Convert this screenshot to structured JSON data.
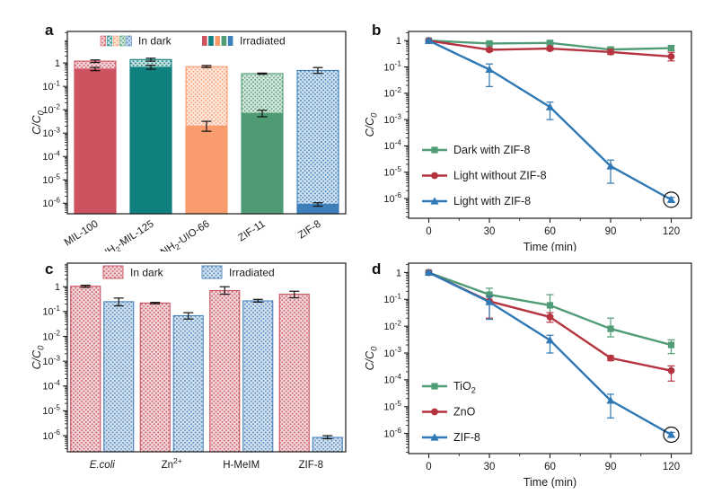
{
  "figure": {
    "background": "#ffffff",
    "text_color": "#1a1a1a"
  },
  "chart_data": [
    {
      "panel_label": "a",
      "type": "bar",
      "bar_mode": "overlay",
      "yscale": "log",
      "ylabel": [
        {
          "t": "C/C",
          "i": true
        },
        {
          "t": "0",
          "sub": true,
          "i": true
        }
      ],
      "ylim_log": [
        -6.45,
        1.35
      ],
      "yticks_exp": [
        0,
        -1,
        -2,
        -3,
        -4,
        -5,
        -6
      ],
      "legend": {
        "in_dark_label": "In dark",
        "irradiated_label": "Irradiated"
      },
      "categories": [
        {
          "label": [
            {
              "t": "MIL-100"
            }
          ],
          "color": "#ce5361"
        },
        {
          "label": [
            {
              "t": "NH"
            },
            {
              "t": "2",
              "sub": true
            },
            {
              "t": "-MIL-125"
            }
          ],
          "color": "#0f817e"
        },
        {
          "label": [
            {
              "t": "NH"
            },
            {
              "t": "2",
              "sub": true
            },
            {
              "t": "-UIO-66"
            }
          ],
          "color": "#f89c6e"
        },
        {
          "label": [
            {
              "t": "ZIF-11"
            }
          ],
          "color": "#4e9b74"
        },
        {
          "label": [
            {
              "t": "ZIF-8"
            }
          ],
          "color": "#3d7fba"
        }
      ],
      "bars": [
        {
          "name": "MIL-100",
          "in_dark": {
            "v": 1.2,
            "lo": 1.05,
            "hi": 1.35
          },
          "irradiated": {
            "v": 0.55,
            "lo": 0.47,
            "hi": 0.65
          }
        },
        {
          "name": "NH2-MIL-125",
          "in_dark": {
            "v": 1.4,
            "lo": 1.2,
            "hi": 1.6
          },
          "irradiated": {
            "v": 0.65,
            "lo": 0.54,
            "hi": 0.8
          }
        },
        {
          "name": "NH2-UIO-66",
          "in_dark": {
            "v": 0.7,
            "lo": 0.64,
            "hi": 0.78
          },
          "irradiated": {
            "v": 0.002,
            "lo": 0.0012,
            "hi": 0.0032
          }
        },
        {
          "name": "ZIF-11",
          "in_dark": {
            "v": 0.35,
            "lo": 0.33,
            "hi": 0.37
          },
          "irradiated": {
            "v": 0.007,
            "lo": 0.005,
            "hi": 0.0095
          }
        },
        {
          "name": "ZIF-8",
          "in_dark": {
            "v": 0.48,
            "lo": 0.36,
            "hi": 0.64
          },
          "irradiated": {
            "v": 9e-07,
            "lo": 7.5e-07,
            "hi": 1.05e-06
          }
        }
      ]
    },
    {
      "panel_label": "b",
      "type": "line",
      "yscale": "log",
      "ylabel": [
        {
          "t": "C/C",
          "i": true
        },
        {
          "t": "0",
          "sub": true,
          "i": true
        }
      ],
      "xlabel": "Time (min)",
      "ylim_log": [
        -6.75,
        0.35
      ],
      "xlim": [
        -10,
        130
      ],
      "xticks": [
        0,
        30,
        60,
        90,
        120
      ],
      "x_minor_step": 15,
      "yticks_exp": [
        0,
        -1,
        -2,
        -3,
        -4,
        -5,
        -6
      ],
      "legend_pos": "lower-left",
      "series": [
        {
          "name": "Dark with ZIF-8",
          "label": [
            {
              "t": "Dark with ZIF-8"
            }
          ],
          "marker": "square",
          "color": "#4f9c76",
          "x": [
            0,
            30,
            60,
            90,
            120
          ],
          "y": [
            1,
            0.78,
            0.82,
            0.46,
            0.52
          ],
          "err_lo": [
            0.93,
            0.62,
            0.68,
            0.38,
            0.42
          ],
          "err_hi": [
            1.08,
            0.92,
            0.98,
            0.56,
            0.64
          ]
        },
        {
          "name": "Light without ZIF-8",
          "label": [
            {
              "t": "Light without ZIF-8"
            }
          ],
          "marker": "circle",
          "color": "#b5333f",
          "x": [
            0,
            30,
            60,
            90,
            120
          ],
          "y": [
            1,
            0.45,
            0.5,
            0.37,
            0.25
          ],
          "err_lo": [
            0.93,
            0.39,
            0.43,
            0.3,
            0.17
          ],
          "err_hi": [
            1.08,
            0.52,
            0.58,
            0.46,
            0.36
          ]
        },
        {
          "name": "Light with ZIF-8",
          "label": [
            {
              "t": "Light with ZIF-8"
            }
          ],
          "marker": "triangle",
          "color": "#2e78b5",
          "x": [
            0,
            30,
            60,
            90,
            120
          ],
          "y": [
            1,
            0.08,
            0.003,
            1.7e-05,
            9e-07
          ],
          "err_lo": [
            0.93,
            0.018,
            0.001,
            3.8e-06,
            7.5e-07
          ],
          "err_hi": [
            1.08,
            0.13,
            0.0046,
            2.9e-05,
            1.1e-06
          ]
        }
      ],
      "annotation_circle": {
        "x": 120,
        "y": 9e-07,
        "r": 8.5
      }
    },
    {
      "panel_label": "c",
      "type": "bar",
      "bar_mode": "pair",
      "yscale": "log",
      "ylabel": [
        {
          "t": "C/C",
          "i": true
        },
        {
          "t": "0",
          "sub": true,
          "i": true
        }
      ],
      "ylim_log": [
        -6.65,
        0.95
      ],
      "yticks_exp": [
        0,
        -1,
        -2,
        -3,
        -4,
        -5,
        -6
      ],
      "pair_colors": {
        "in_dark": "#c95260",
        "irradiated": "#4a82bb"
      },
      "legend": {
        "in_dark_label": "In dark",
        "irradiated_label": "Irradiated"
      },
      "categories": [
        {
          "label": [
            {
              "t": "E.coli",
              "i": true
            }
          ]
        },
        {
          "label": [
            {
              "t": "Zn"
            },
            {
              "t": "2+",
              "sup": true
            }
          ]
        },
        {
          "label": [
            {
              "t": "H-MeIM"
            }
          ]
        },
        {
          "label": [
            {
              "t": "ZIF-8"
            }
          ]
        }
      ],
      "bars": [
        {
          "name": "E.coli",
          "in_dark": {
            "v": 1.05,
            "lo": 0.95,
            "hi": 1.15
          },
          "irradiated": {
            "v": 0.25,
            "lo": 0.17,
            "hi": 0.35
          }
        },
        {
          "name": "Zn2+",
          "in_dark": {
            "v": 0.22,
            "lo": 0.205,
            "hi": 0.235
          },
          "irradiated": {
            "v": 0.068,
            "lo": 0.05,
            "hi": 0.09
          }
        },
        {
          "name": "H-MeIM",
          "in_dark": {
            "v": 0.7,
            "lo": 0.5,
            "hi": 1.0
          },
          "irradiated": {
            "v": 0.27,
            "lo": 0.24,
            "hi": 0.31
          }
        },
        {
          "name": "ZIF-8",
          "in_dark": {
            "v": 0.5,
            "lo": 0.36,
            "hi": 0.66
          },
          "irradiated": {
            "v": 8.5e-07,
            "lo": 7.5e-07,
            "hi": 1e-06
          }
        }
      ]
    },
    {
      "panel_label": "d",
      "type": "line",
      "yscale": "log",
      "ylabel": [
        {
          "t": "C/C",
          "i": true
        },
        {
          "t": "0",
          "sub": true,
          "i": true
        }
      ],
      "xlabel": "Time (min)",
      "ylim_log": [
        -6.75,
        0.35
      ],
      "xlim": [
        -10,
        130
      ],
      "xticks": [
        0,
        30,
        60,
        90,
        120
      ],
      "x_minor_step": 15,
      "yticks_exp": [
        0,
        -1,
        -2,
        -3,
        -4,
        -5,
        -6
      ],
      "legend_pos": "lower-left",
      "series": [
        {
          "name": "TiO2",
          "label": [
            {
              "t": "TiO"
            },
            {
              "t": "2",
              "sub": true
            }
          ],
          "marker": "square",
          "color": "#4f9c76",
          "x": [
            0,
            30,
            60,
            90,
            120
          ],
          "y": [
            1,
            0.15,
            0.06,
            0.008,
            0.002
          ],
          "err_lo": [
            0.93,
            0.085,
            0.024,
            0.004,
            0.00095
          ],
          "err_hi": [
            1.08,
            0.26,
            0.15,
            0.02,
            0.0031
          ]
        },
        {
          "name": "ZnO",
          "label": [
            {
              "t": "ZnO"
            }
          ],
          "marker": "circle",
          "color": "#b5333f",
          "x": [
            0,
            30,
            60,
            90,
            120
          ],
          "y": [
            1,
            0.085,
            0.022,
            0.00065,
            0.00022
          ],
          "err_lo": [
            0.93,
            0.02,
            0.014,
            0.00052,
            9e-05
          ],
          "err_hi": [
            1.08,
            0.13,
            0.032,
            0.0008,
            0.00033
          ]
        },
        {
          "name": "ZIF-8",
          "label": [
            {
              "t": "ZIF-8"
            }
          ],
          "marker": "triangle",
          "color": "#2e78b5",
          "x": [
            0,
            30,
            60,
            90,
            120
          ],
          "y": [
            1,
            0.08,
            0.003,
            1.7e-05,
            9e-07
          ],
          "err_lo": [
            0.93,
            0.018,
            0.001,
            3.8e-06,
            7.5e-07
          ],
          "err_hi": [
            1.08,
            0.13,
            0.0046,
            2.9e-05,
            1.1e-06
          ]
        }
      ],
      "annotation_circle": {
        "x": 120,
        "y": 9e-07,
        "r": 8.5
      }
    }
  ]
}
